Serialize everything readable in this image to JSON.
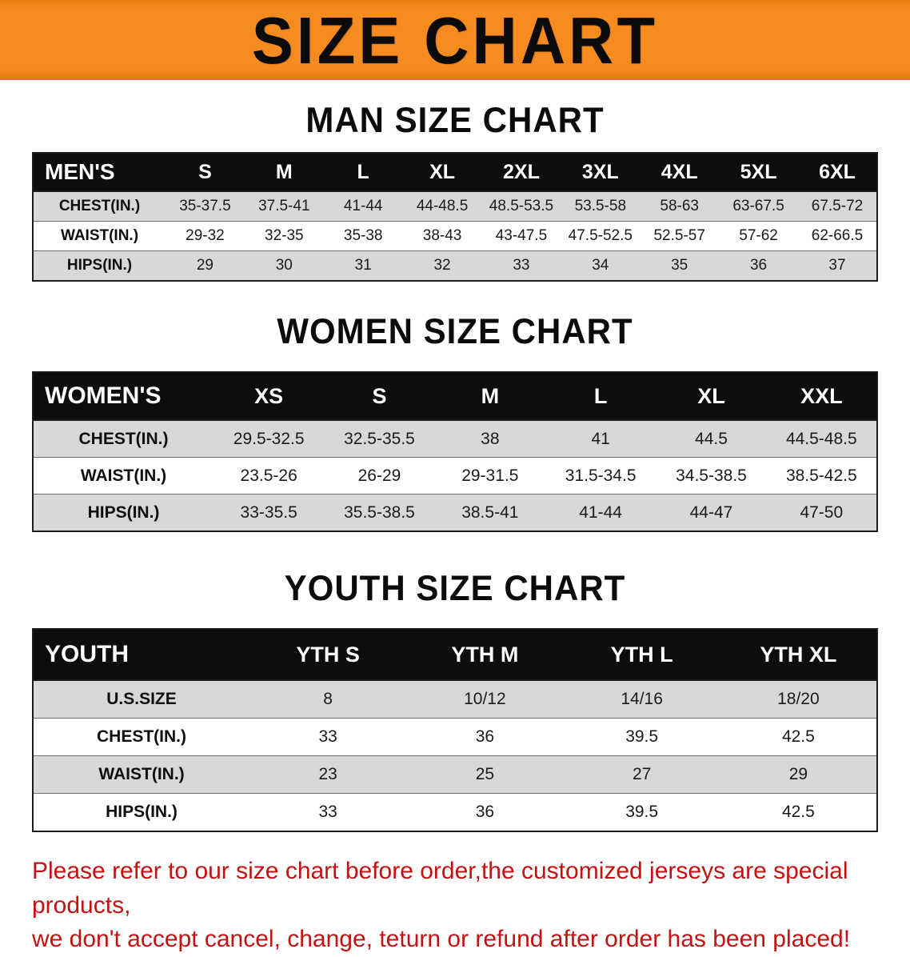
{
  "banner": {
    "title": "SIZE CHART",
    "bg_color": "#f68b1f",
    "text_color": "#0b0b0b"
  },
  "colors": {
    "header_bg": "#0d0d0d",
    "header_text": "#ffffff",
    "shaded_row": "#d8d8d8",
    "footer_text": "#c31212"
  },
  "sections": [
    {
      "heading": "MAN SIZE CHART",
      "header_label": "MEN'S",
      "columns": [
        "S",
        "M",
        "L",
        "XL",
        "2XL",
        "3XL",
        "4XL",
        "5XL",
        "6XL"
      ],
      "rows": [
        {
          "label": "CHEST(IN.)",
          "values": [
            "35-37.5",
            "37.5-41",
            "41-44",
            "44-48.5",
            "48.5-53.5",
            "53.5-58",
            "58-63",
            "63-67.5",
            "67.5-72"
          ]
        },
        {
          "label": "WAIST(IN.)",
          "values": [
            "29-32",
            "32-35",
            "35-38",
            "38-43",
            "43-47.5",
            "47.5-52.5",
            "52.5-57",
            "57-62",
            "62-66.5"
          ]
        },
        {
          "label": "HIPS(IN.)",
          "values": [
            "29",
            "30",
            "31",
            "32",
            "33",
            "34",
            "35",
            "36",
            "37"
          ]
        }
      ]
    },
    {
      "heading": "WOMEN SIZE CHART",
      "header_label": "WOMEN'S",
      "columns": [
        "XS",
        "S",
        "M",
        "L",
        "XL",
        "XXL"
      ],
      "rows": [
        {
          "label": "CHEST(IN.)",
          "values": [
            "29.5-32.5",
            "32.5-35.5",
            "38",
            "41",
            "44.5",
            "44.5-48.5"
          ]
        },
        {
          "label": "WAIST(IN.)",
          "values": [
            "23.5-26",
            "26-29",
            "29-31.5",
            "31.5-34.5",
            "34.5-38.5",
            "38.5-42.5"
          ]
        },
        {
          "label": "HIPS(IN.)",
          "values": [
            "33-35.5",
            "35.5-38.5",
            "38.5-41",
            "41-44",
            "44-47",
            "47-50"
          ]
        }
      ]
    },
    {
      "heading": "YOUTH SIZE CHART",
      "header_label": "YOUTH",
      "columns": [
        "YTH S",
        "YTH M",
        "YTH L",
        "YTH XL"
      ],
      "rows": [
        {
          "label": "U.S.SIZE",
          "values": [
            "8",
            "10/12",
            "14/16",
            "18/20"
          ]
        },
        {
          "label": "CHEST(IN.)",
          "values": [
            "33",
            "36",
            "39.5",
            "42.5"
          ]
        },
        {
          "label": "WAIST(IN.)",
          "values": [
            "23",
            "25",
            "27",
            "29"
          ]
        },
        {
          "label": "HIPS(IN.)",
          "values": [
            "33",
            "36",
            "39.5",
            "42.5"
          ]
        }
      ]
    }
  ],
  "footer": {
    "line1": "Please refer to our size chart before order,the customized jerseys are special products,",
    "line2": "we don't accept cancel, change, teturn or refund after order has been placed!"
  }
}
